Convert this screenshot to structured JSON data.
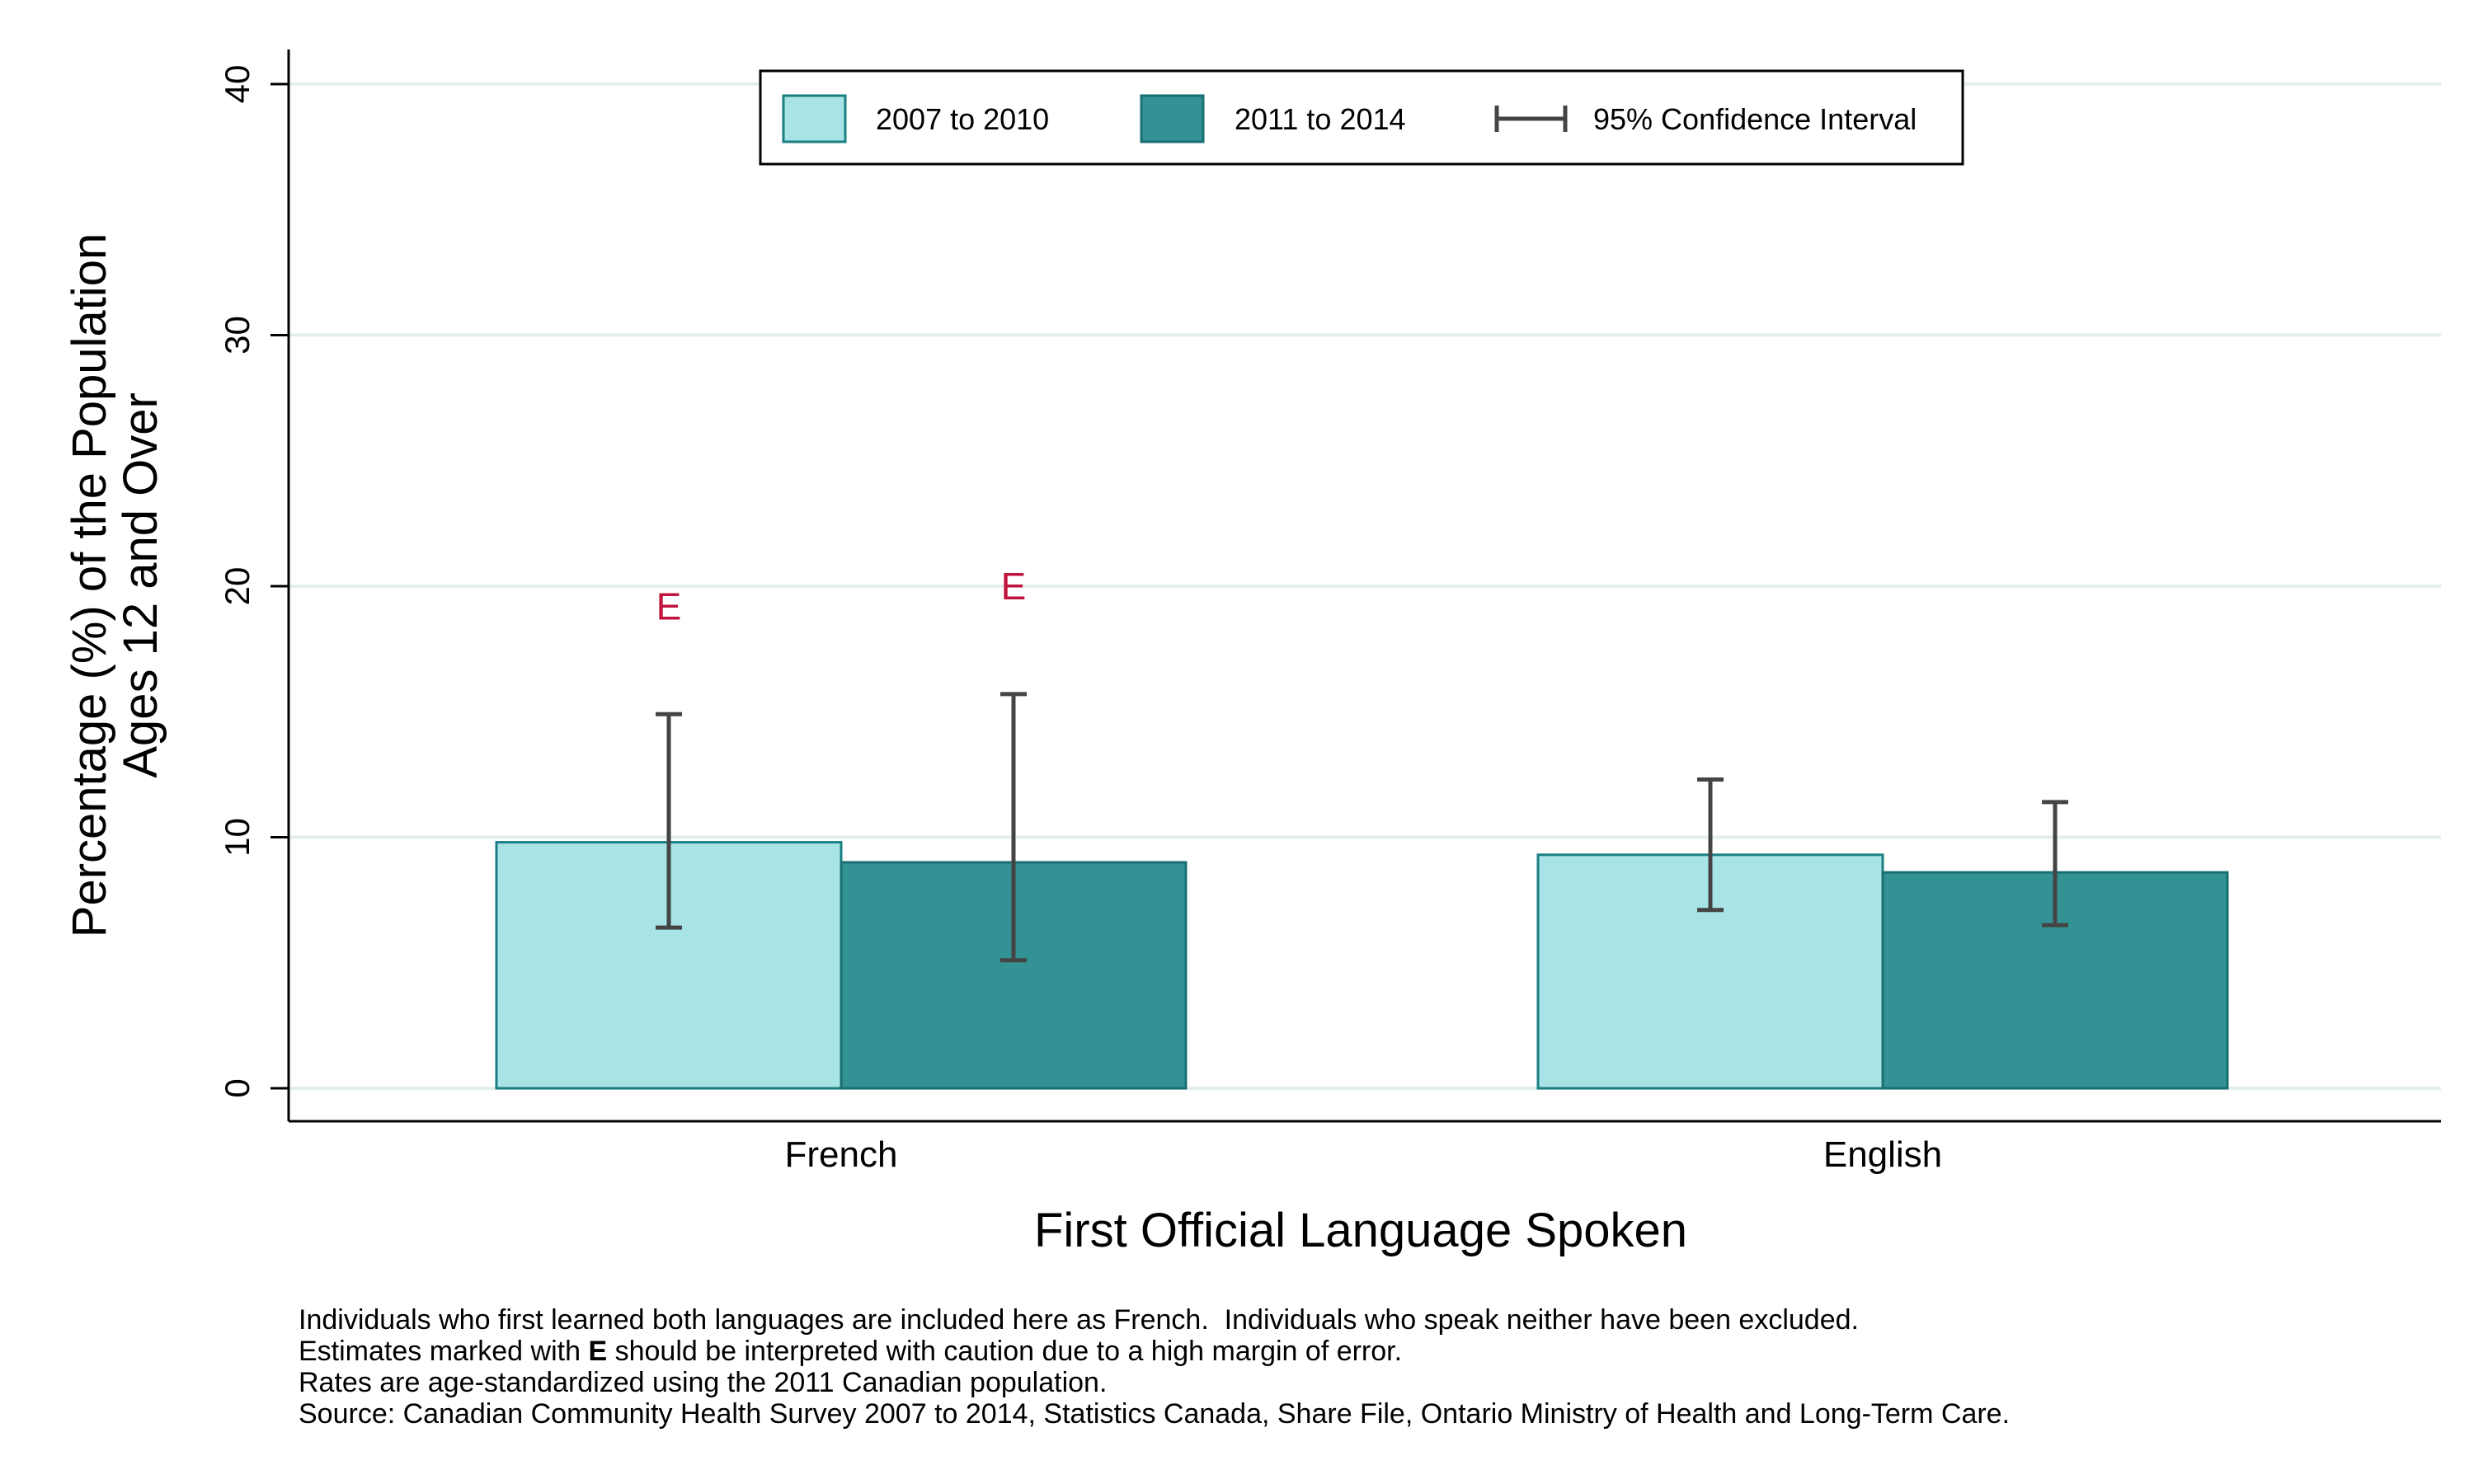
{
  "chart_data": {
    "type": "bar",
    "title": "",
    "xlabel": "First Official Language Spoken",
    "ylabel_line1": "Percentage (%) of the Population",
    "ylabel_line2": "Ages 12 and Over",
    "ylim": [
      0,
      40
    ],
    "yticks": [
      0,
      10,
      20,
      30,
      40
    ],
    "grid": true,
    "legend_position": "top-center",
    "categories": [
      "French",
      "English"
    ],
    "series": [
      {
        "name": "2007 to 2010",
        "color": "#a8e4e6",
        "stroke": "#1a7f82",
        "values": [
          9.8,
          9.3
        ],
        "ci_low": [
          6.4,
          7.1
        ],
        "ci_high": [
          14.9,
          12.3
        ],
        "flag": [
          "E",
          ""
        ]
      },
      {
        "name": "2011 to 2014",
        "color": "#339294",
        "stroke": "#1a6f72",
        "values": [
          9.0,
          8.6
        ],
        "ci_low": [
          5.1,
          6.5
        ],
        "ci_high": [
          15.7,
          11.4
        ],
        "flag": [
          "E",
          ""
        ]
      }
    ],
    "ci_legend_label": "95% Confidence Interval",
    "flag_color": "#c0143c",
    "ci_color": "#444444"
  },
  "notes": {
    "line1": "Individuals who first learned both languages are included here as French.  Individuals who speak neither have been excluded.",
    "line2_pre": "Estimates marked with ",
    "line2_bold": "E",
    "line2_post": " should be interpreted with caution due to a high margin of error.",
    "line3": "Rates are age-standardized using the 2011 Canadian population.",
    "line4": "Source: Canadian Community Health Survey 2007 to 2014, Statistics Canada, Share File, Ontario Ministry of Health and Long-Term Care."
  }
}
